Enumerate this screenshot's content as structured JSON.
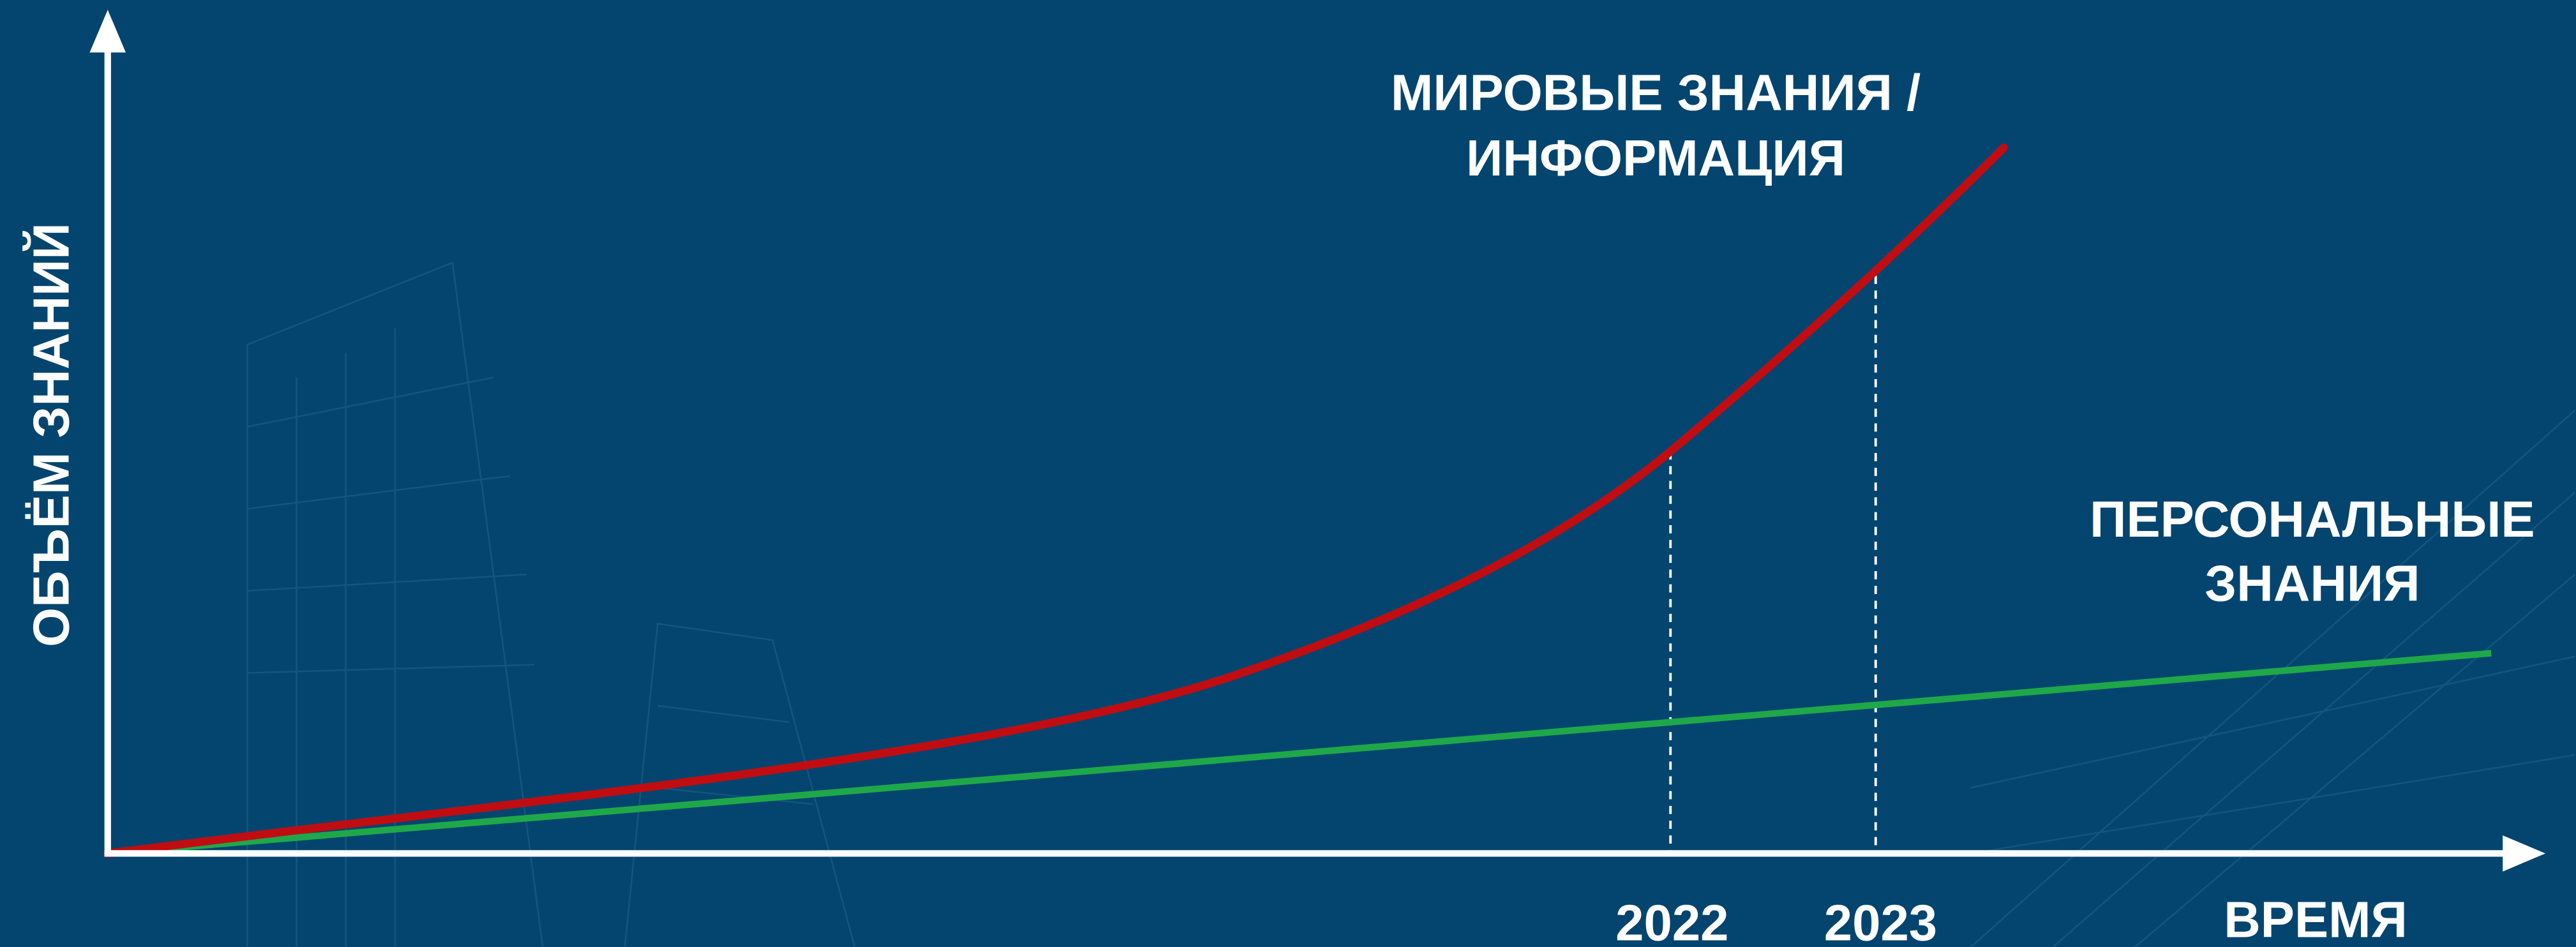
{
  "axes": {
    "y_label": "ОБЪЁМ ЗНАНИЙ",
    "x_label": "ВРЕМЯ"
  },
  "markers": [
    {
      "label": "2022"
    },
    {
      "label": "2023"
    }
  ],
  "curves": [
    {
      "label_lines": [
        "МИРОВЫЕ ЗНАНИЯ /",
        "ИНФОРМАЦИЯ"
      ]
    },
    {
      "label_lines": [
        "ПЕРСОНАЛЬНЫЕ",
        "ЗНАНИЯ"
      ]
    }
  ]
}
